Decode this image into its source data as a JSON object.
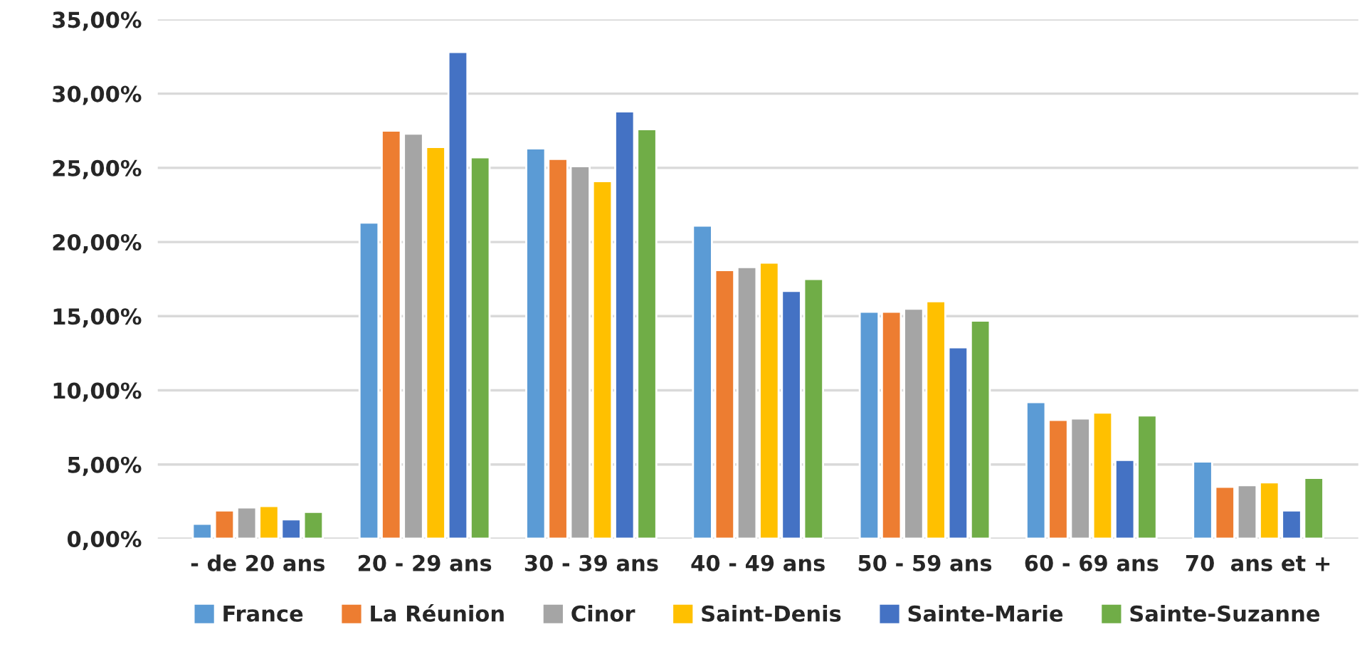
{
  "chart_data": {
    "type": "bar",
    "categories": [
      "- de 20 ans",
      "20 - 29 ans",
      "30 - 39 ans",
      "40 - 49 ans",
      "50 - 59 ans",
      "60 - 69 ans",
      "70  ans et +"
    ],
    "series": [
      {
        "name": "France",
        "color": "#5b9bd5",
        "values": [
          1.0,
          21.3,
          26.3,
          21.1,
          15.3,
          9.2,
          5.2
        ]
      },
      {
        "name": "La Réunion",
        "color": "#ed7d31",
        "values": [
          1.9,
          27.5,
          25.6,
          18.1,
          15.3,
          8.0,
          3.5
        ]
      },
      {
        "name": "Cinor",
        "color": "#a5a5a5",
        "values": [
          2.1,
          27.3,
          25.1,
          18.3,
          15.5,
          8.1,
          3.6
        ]
      },
      {
        "name": "Saint-Denis",
        "color": "#ffc000",
        "values": [
          2.2,
          26.4,
          24.1,
          18.6,
          16.0,
          8.5,
          3.8
        ]
      },
      {
        "name": "Sainte-Marie",
        "color": "#4472c4",
        "values": [
          1.3,
          32.8,
          28.8,
          16.7,
          12.9,
          5.3,
          1.9
        ]
      },
      {
        "name": "Sainte-Suzanne",
        "color": "#70ad47",
        "values": [
          1.8,
          25.7,
          27.6,
          17.5,
          14.7,
          8.3,
          4.1
        ]
      }
    ],
    "ylim": [
      0,
      35
    ],
    "yticks": [
      {
        "value": 0,
        "label": "0,00%"
      },
      {
        "value": 5,
        "label": "5,00%"
      },
      {
        "value": 10,
        "label": "10,00%"
      },
      {
        "value": 15,
        "label": "15,00%"
      },
      {
        "value": 20,
        "label": "20,00%"
      },
      {
        "value": 25,
        "label": "25,00%"
      },
      {
        "value": 30,
        "label": "30,00%"
      },
      {
        "value": 35,
        "label": "35,00%"
      }
    ],
    "grid": "y",
    "legend": "bottom"
  }
}
